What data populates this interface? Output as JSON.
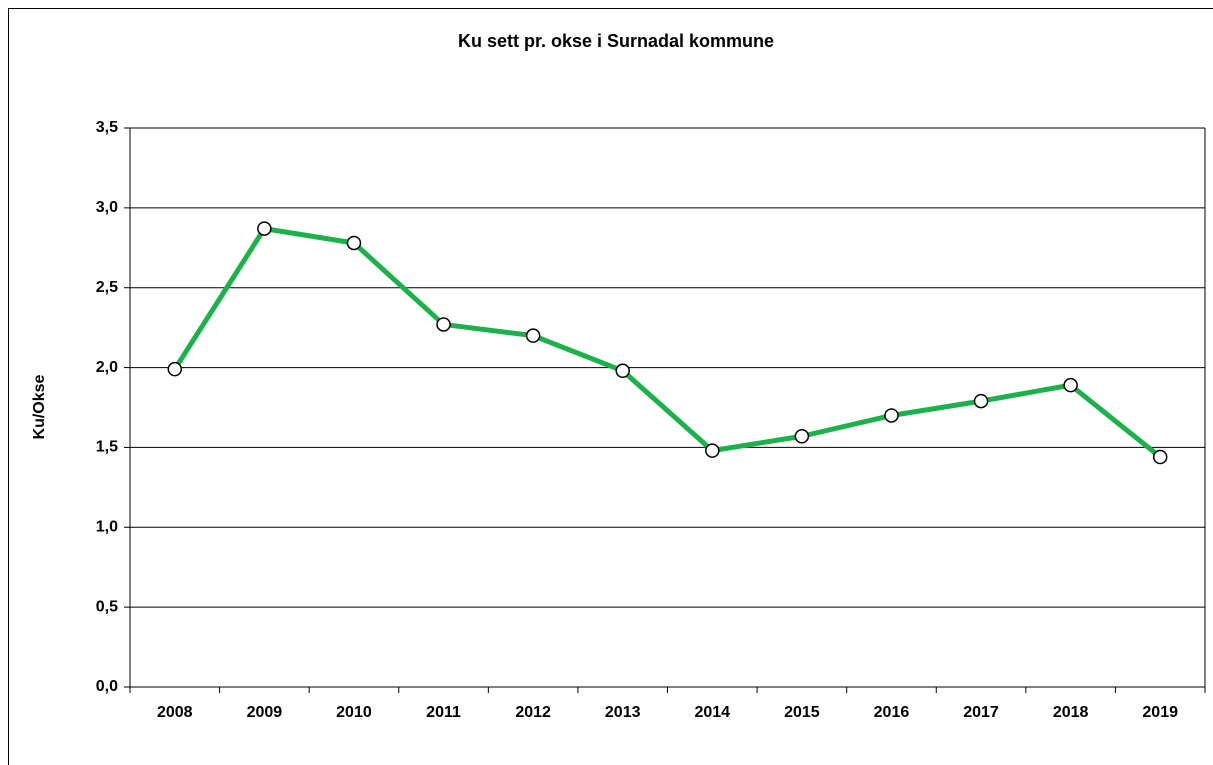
{
  "chart_data": {
    "type": "line",
    "title": "Ku sett pr. okse i Surnadal kommune",
    "y_label": "Ku/Okse",
    "categories": [
      "2008",
      "2009",
      "2010",
      "2011",
      "2012",
      "2013",
      "2014",
      "2015",
      "2016",
      "2017",
      "2018",
      "2019"
    ],
    "series": [
      {
        "name": "Ku/Okse",
        "color": "#1db14b",
        "values": [
          1.99,
          2.87,
          2.78,
          2.27,
          2.2,
          1.98,
          1.48,
          1.57,
          1.7,
          1.79,
          1.89,
          1.44
        ]
      }
    ],
    "ylim": [
      0,
      3.5
    ],
    "yticks": [
      {
        "value": 0,
        "label": "0,0"
      },
      {
        "value": 0.5,
        "label": "0,5"
      },
      {
        "value": 1,
        "label": "1,0"
      },
      {
        "value": 1.5,
        "label": "1,5"
      },
      {
        "value": 2,
        "label": "2,0"
      },
      {
        "value": 2.5,
        "label": "2,5"
      },
      {
        "value": 3,
        "label": "3,0"
      },
      {
        "value": 3.5,
        "label": "3,5"
      }
    ],
    "grid": true
  }
}
